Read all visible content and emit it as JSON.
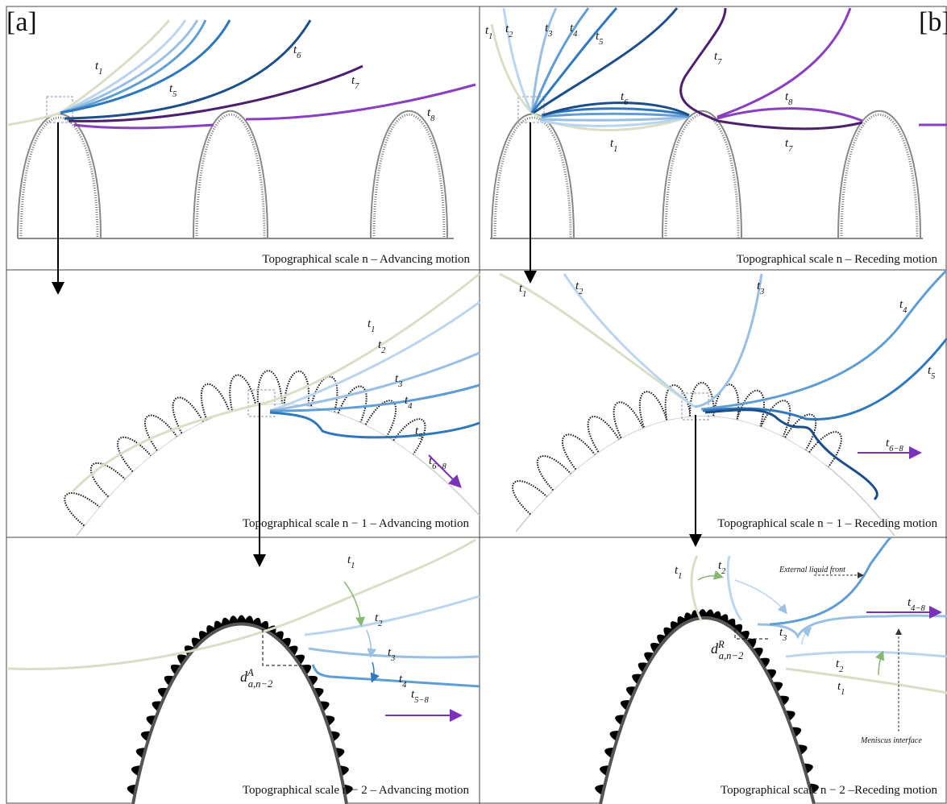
{
  "panel_tags": [
    "[a]",
    "[b]"
  ],
  "panels": [
    {
      "caption": "Topographical scale n – Advancing motion",
      "labels": [
        {
          "base": "t",
          "sub": "1"
        },
        {
          "base": "t",
          "sub": "5"
        },
        {
          "base": "t",
          "sub": "6"
        },
        {
          "base": "t",
          "sub": "7"
        },
        {
          "base": "t",
          "sub": "8"
        }
      ]
    },
    {
      "caption": "Topographical scale n – Receding motion",
      "labels": [
        {
          "base": "t",
          "sub": "1"
        },
        {
          "base": "t",
          "sub": "2"
        },
        {
          "base": "t",
          "sub": "3"
        },
        {
          "base": "t",
          "sub": "4"
        },
        {
          "base": "t",
          "sub": "5"
        },
        {
          "base": "t",
          "sub": "7"
        },
        {
          "base": "t",
          "sub": "6"
        },
        {
          "base": "t",
          "sub": "8"
        },
        {
          "base": "t",
          "sub": "1"
        },
        {
          "base": "t",
          "sub": "7"
        }
      ]
    },
    {
      "caption": "Topographical scale n − 1 – Advancing motion",
      "labels": [
        {
          "base": "t",
          "sub": "1"
        },
        {
          "base": "t",
          "sub": "2"
        },
        {
          "base": "t",
          "sub": "3"
        },
        {
          "base": "t",
          "sub": "4"
        },
        {
          "base": "t",
          "sub": "5"
        },
        {
          "base": "t",
          "sub": "6−8"
        }
      ]
    },
    {
      "caption": "Topographical scale n − 1 – Receding motion",
      "labels": [
        {
          "base": "t",
          "sub": "1"
        },
        {
          "base": "t",
          "sub": "2"
        },
        {
          "base": "t",
          "sub": "3"
        },
        {
          "base": "t",
          "sub": "4"
        },
        {
          "base": "t",
          "sub": "5"
        },
        {
          "base": "t",
          "sub": "6−8"
        }
      ]
    },
    {
      "caption": "Topographical scale n − 2 – Advancing motion",
      "labels": [
        {
          "base": "t",
          "sub": "1"
        },
        {
          "base": "t",
          "sub": "2"
        },
        {
          "base": "t",
          "sub": "3"
        },
        {
          "base": "t",
          "sub": "4"
        },
        {
          "base": "t",
          "sub": "5−8"
        },
        {
          "base": "d",
          "sup": "A",
          "sub": "a,n−2"
        }
      ]
    },
    {
      "caption": "Topographical scale n − 2 –Receding motion",
      "labels": [
        {
          "base": "t",
          "sub": "1"
        },
        {
          "base": "t",
          "sub": "2"
        },
        {
          "base": "t",
          "sub": "3"
        },
        {
          "base": "t",
          "sub": "4−8"
        },
        {
          "base": "t",
          "sub": "2"
        },
        {
          "base": "t",
          "sub": "1"
        },
        {
          "base": "d",
          "sup": "R",
          "sub": "a,n−2"
        }
      ],
      "annotations": [
        "External liquid front",
        "Meniscus interface"
      ]
    }
  ]
}
